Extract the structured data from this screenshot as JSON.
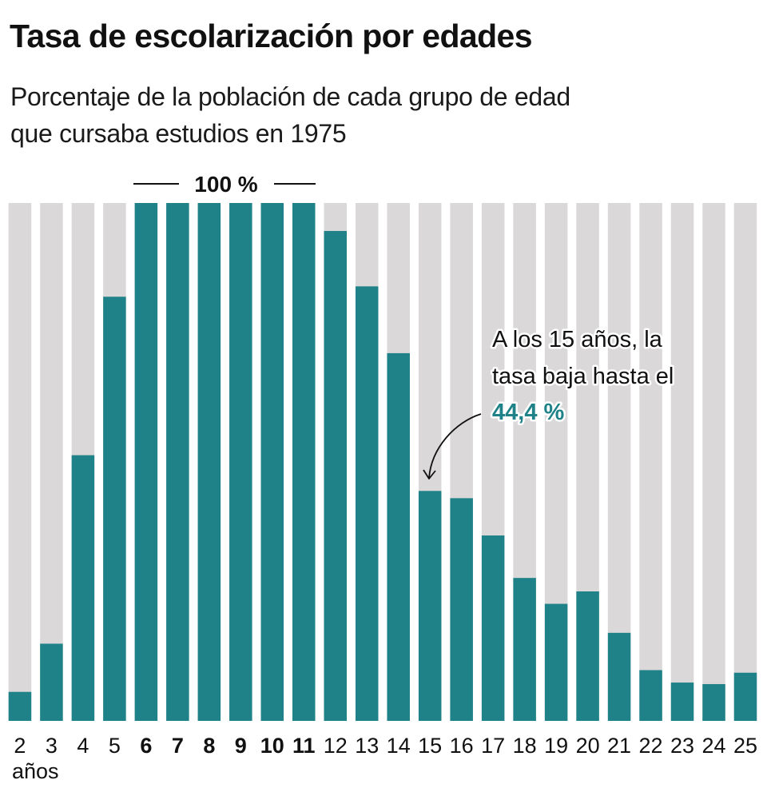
{
  "header": {
    "title": "Tasa de escolarización por edades",
    "subtitle_lines": [
      "Porcentaje de la población de cada grupo de edad",
      "que cursaba estudios en 1975"
    ]
  },
  "colors": {
    "bar_fill": "#1f8288",
    "bar_background": "#dad8d9",
    "text": "#111111",
    "highlight": "#1f8288"
  },
  "chart_data": {
    "type": "bar",
    "title": "Tasa de escolarización por edades",
    "subtitle": "Porcentaje de la población de cada grupo de edad que cursaba estudios en 1975",
    "xlabel": "años",
    "ylabel": "",
    "ylim": [
      0,
      100
    ],
    "grid": false,
    "categories": [
      "2",
      "3",
      "4",
      "5",
      "6",
      "7",
      "8",
      "9",
      "10",
      "11",
      "12",
      "13",
      "14",
      "15",
      "16",
      "17",
      "18",
      "19",
      "20",
      "21",
      "22",
      "23",
      "24",
      "25"
    ],
    "bold_categories": [
      "6",
      "7",
      "8",
      "9",
      "10",
      "11"
    ],
    "series": [
      {
        "name": "Tasa de escolarización (%)",
        "values": [
          5.6,
          14.9,
          51.3,
          81.9,
          100,
          100,
          100,
          100,
          100,
          100,
          94.6,
          83.9,
          71.0,
          44.4,
          43.0,
          35.8,
          27.6,
          22.6,
          25.0,
          17.0,
          9.8,
          7.4,
          7.1,
          9.3
        ]
      }
    ],
    "background_value": 100,
    "x_unit_label": "años",
    "top_label": "100 %",
    "annotation": {
      "category": "15",
      "lines": [
        "A los 15 años, la",
        "tasa baja hasta el"
      ],
      "highlight": "44,4 %"
    }
  }
}
